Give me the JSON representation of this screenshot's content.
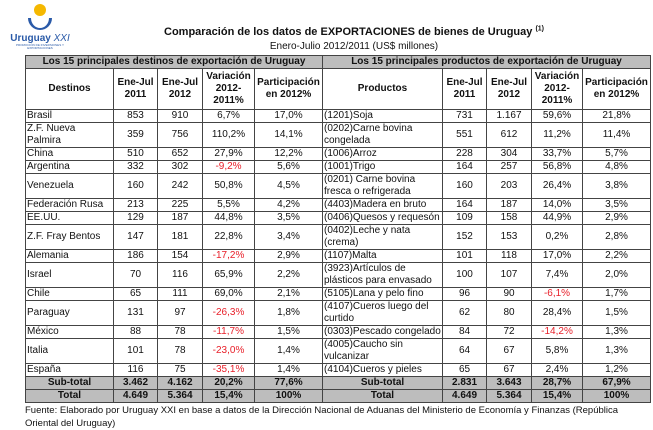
{
  "logo": {
    "name": "Uruguay",
    "name_suffix": "XXI",
    "tagline": "PROMOCIÓN DE INVERSIONES Y EXPORTACIONES"
  },
  "title": "Comparación de los datos de EXPORTACIONES de bienes de Uruguay",
  "title_note": "(1)",
  "subtitle": "Enero-Julio  2012/2011 (US$ millones)",
  "colors": {
    "negative": "#e8202a",
    "band": "#bdbdbd",
    "logo": "#2a5aa8",
    "sun": "#f5b800"
  },
  "left": {
    "section": "Los 15 principales destinos de exportación de Uruguay",
    "headers": [
      "Destinos",
      "Ene-Jul 2011",
      "Ene-Jul 2012",
      "Variación 2012-2011%",
      "Participación en 2012%"
    ],
    "rows": [
      [
        "Brasil",
        "853",
        "910",
        "6,7%",
        "17,0%"
      ],
      [
        "Z.F. Nueva Palmira",
        "359",
        "756",
        "110,2%",
        "14,1%"
      ],
      [
        "China",
        "510",
        "652",
        "27,9%",
        "12,2%"
      ],
      [
        "Argentina",
        "332",
        "302",
        "-9,2%",
        "5,6%"
      ],
      [
        "Venezuela",
        "160",
        "242",
        "50,8%",
        "4,5%"
      ],
      [
        "Federación Rusa",
        "213",
        "225",
        "5,5%",
        "4,2%"
      ],
      [
        "EE.UU.",
        "129",
        "187",
        "44,8%",
        "3,5%"
      ],
      [
        "Z.F. Fray Bentos",
        "147",
        "181",
        "22,8%",
        "3,4%"
      ],
      [
        "Alemania",
        "186",
        "154",
        "-17,2%",
        "2,9%"
      ],
      [
        "Israel",
        "70",
        "116",
        "65,9%",
        "2,2%"
      ],
      [
        "Chile",
        "65",
        "111",
        "69,0%",
        "2,1%"
      ],
      [
        "Paraguay",
        "131",
        "97",
        "-26,3%",
        "1,8%"
      ],
      [
        "México",
        "88",
        "78",
        "-11,7%",
        "1,5%"
      ],
      [
        "Italia",
        "101",
        "78",
        "-23,0%",
        "1,4%"
      ],
      [
        "España",
        "116",
        "75",
        "-35,1%",
        "1,4%"
      ]
    ],
    "subtotal": [
      "Sub-total",
      "3.462",
      "4.162",
      "20,2%",
      "77,6%"
    ],
    "total": [
      "Total",
      "4.649",
      "5.364",
      "15,4%",
      "100%"
    ]
  },
  "right": {
    "section": "Los 15 principales productos de exportación de Uruguay",
    "headers": [
      "Productos",
      "Ene-Jul 2011",
      "Ene-Jul 2012",
      "Variación 2012-2011%",
      "Participación en 2012%"
    ],
    "rows": [
      [
        "(1201)Soja",
        "731",
        "1.167",
        "59,6%",
        "21,8%"
      ],
      [
        "(0202)Carne bovina congelada",
        "551",
        "612",
        "11,2%",
        "11,4%"
      ],
      [
        "(1006)Arroz",
        "228",
        "304",
        "33,7%",
        "5,7%"
      ],
      [
        "(1001)Trigo",
        "164",
        "257",
        "56,8%",
        "4,8%"
      ],
      [
        "(0201) Carne bovina fresca o refrigerada",
        "160",
        "203",
        "26,4%",
        "3,8%"
      ],
      [
        "(4403)Madera en bruto",
        "164",
        "187",
        "14,0%",
        "3,5%"
      ],
      [
        "(0406)Quesos y requesón",
        "109",
        "158",
        "44,9%",
        "2,9%"
      ],
      [
        "(0402)Leche y nata (crema)",
        "152",
        "153",
        "0,2%",
        "2,8%"
      ],
      [
        "(1107)Malta",
        "101",
        "118",
        "17,0%",
        "2,2%"
      ],
      [
        "(3923)Artículos de plásticos para envasado",
        "100",
        "107",
        "7,4%",
        "2,0%"
      ],
      [
        "(5105)Lana y pelo fino",
        "96",
        "90",
        "-6,1%",
        "1,7%"
      ],
      [
        "(4107)Cueros luego del curtido",
        "62",
        "80",
        "28,4%",
        "1,5%"
      ],
      [
        "(0303)Pescado congelado",
        "84",
        "72",
        "-14,2%",
        "1,3%"
      ],
      [
        "(4005)Caucho sin vulcanizar",
        "64",
        "67",
        "5,8%",
        "1,3%"
      ],
      [
        "(4104)Cueros y pieles",
        "65",
        "67",
        "2,4%",
        "1,2%"
      ]
    ],
    "subtotal": [
      "Sub-total",
      "2.831",
      "3.643",
      "28,7%",
      "67,9%"
    ],
    "total": [
      "Total",
      "4.649",
      "5.364",
      "15,4%",
      "100%"
    ]
  },
  "footnote": "Fuente: Elaborado por Uruguay XXI en base a datos de la Dirección Nacional de Aduanas del Ministerio de Economía y Finanzas (República Oriental del Uruguay)"
}
